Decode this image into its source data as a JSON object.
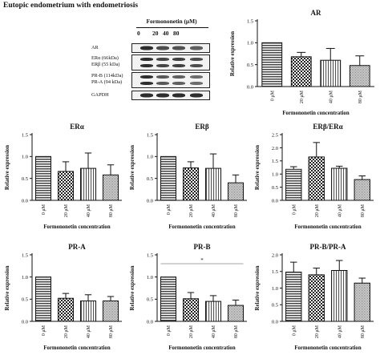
{
  "title": "Eutopic endometrium with endometriosis",
  "blot": {
    "header": "Formononetin (μM)",
    "doses": [
      "0",
      "20",
      "40",
      "80"
    ],
    "rows": [
      {
        "labels": [
          "AR"
        ],
        "intensity": [
          1.0,
          0.75,
          0.7,
          0.6
        ]
      },
      {
        "labels": [
          "ERα (66kDa)",
          "ERβ (55 kDa)"
        ],
        "intensity": [
          1.0,
          0.8,
          0.85,
          0.75
        ]
      },
      {
        "labels": [
          "PR-B (114kDa)",
          "PR-A (94 kDa)"
        ],
        "intensity": [
          1.0,
          0.65,
          0.6,
          0.5
        ]
      },
      {
        "labels": [
          "GAPDH"
        ],
        "intensity": [
          1.0,
          1.0,
          1.0,
          1.0
        ]
      }
    ]
  },
  "chart_data": [
    {
      "type": "bar",
      "title": "AR",
      "categories": [
        "0 μM",
        "20 μM",
        "40 μM",
        "80 μM"
      ],
      "values": [
        1.0,
        0.68,
        0.6,
        0.48
      ],
      "errors": [
        0.0,
        0.1,
        0.27,
        0.22
      ],
      "xlabel": "Formononetin concentration",
      "ylabel": "Relative expression",
      "ylim": [
        0,
        1.5
      ],
      "yticks": [
        "0.0",
        "0.5",
        "1.0",
        "1.5"
      ],
      "patterns": [
        "hstripe",
        "check",
        "vstripe",
        "dense"
      ],
      "grid": false
    },
    {
      "type": "bar",
      "title": "ERα",
      "categories": [
        "0 μM",
        "20 μM",
        "40 μM",
        "80 μM"
      ],
      "values": [
        1.0,
        0.66,
        0.73,
        0.58
      ],
      "errors": [
        0.0,
        0.22,
        0.35,
        0.23
      ],
      "xlabel": "Formononetin concentration",
      "ylabel": "Relative expression",
      "ylim": [
        0,
        1.5
      ],
      "yticks": [
        "0.0",
        "0.5",
        "1.0",
        "1.5"
      ],
      "patterns": [
        "hstripe",
        "check",
        "vstripe",
        "dense"
      ],
      "grid": false
    },
    {
      "type": "bar",
      "title": "ERβ",
      "categories": [
        "0 μM",
        "20 μM",
        "40 μM",
        "80 μM"
      ],
      "values": [
        1.0,
        0.74,
        0.73,
        0.4
      ],
      "errors": [
        0.0,
        0.14,
        0.33,
        0.18
      ],
      "xlabel": "Formononetin concentration",
      "ylabel": "Relative expression",
      "ylim": [
        0,
        1.5
      ],
      "yticks": [
        "0.0",
        "0.5",
        "1.0",
        "1.5"
      ],
      "patterns": [
        "hstripe",
        "check",
        "vstripe",
        "dense"
      ],
      "grid": false
    },
    {
      "type": "bar",
      "title": "ERβ/ERα",
      "categories": [
        "0 μM",
        "20 μM",
        "40 μM",
        "80 μM"
      ],
      "values": [
        1.18,
        1.65,
        1.22,
        0.79
      ],
      "errors": [
        0.1,
        0.55,
        0.08,
        0.14
      ],
      "xlabel": "Formononetin concentration",
      "ylabel": "Relative expression",
      "ylim": [
        0,
        2.5
      ],
      "yticks": [
        "0.0",
        "0.5",
        "1.0",
        "1.5",
        "2.0",
        "2.5"
      ],
      "patterns": [
        "hstripe",
        "check",
        "vstripe",
        "dense"
      ],
      "grid": false
    },
    {
      "type": "bar",
      "title": "PR-A",
      "categories": [
        "0 μM",
        "20 μM",
        "40 μM",
        "80 μM"
      ],
      "values": [
        1.0,
        0.52,
        0.46,
        0.46
      ],
      "errors": [
        0.0,
        0.11,
        0.14,
        0.1
      ],
      "xlabel": "Formononetin concentration",
      "ylabel": "Relative expression",
      "ylim": [
        0,
        1.5
      ],
      "yticks": [
        "0.0",
        "0.5",
        "1.0",
        "1.5"
      ],
      "patterns": [
        "hstripe",
        "check",
        "vstripe",
        "dense"
      ],
      "grid": false
    },
    {
      "type": "bar",
      "title": "PR-B",
      "categories": [
        "0 μM",
        "20 μM",
        "40 μM",
        "80 μM"
      ],
      "values": [
        1.0,
        0.51,
        0.45,
        0.36
      ],
      "errors": [
        0.0,
        0.14,
        0.13,
        0.12
      ],
      "xlabel": "Formononetin concentration",
      "ylabel": "Relative expression",
      "ylim": [
        0,
        1.5
      ],
      "yticks": [
        "0.0",
        "0.5",
        "1.0",
        "1.5"
      ],
      "patterns": [
        "hstripe",
        "check",
        "vstripe",
        "dense"
      ],
      "grid": false,
      "annotation": {
        "text": "*",
        "from": 0,
        "to": 3,
        "y": 1.3
      }
    },
    {
      "type": "bar",
      "title": "PR-B/PR-A",
      "categories": [
        "0 μM",
        "20 μM",
        "40 μM",
        "80 μM"
      ],
      "values": [
        1.48,
        1.4,
        1.53,
        1.15
      ],
      "errors": [
        0.3,
        0.2,
        0.3,
        0.15
      ],
      "xlabel": "Formononetin concentration",
      "ylabel": "Relative expression",
      "ylim": [
        0,
        2.0
      ],
      "yticks": [
        "0.0",
        "0.5",
        "1.0",
        "1.5",
        "2.0"
      ],
      "patterns": [
        "hstripe",
        "check",
        "vstripe",
        "dense"
      ],
      "grid": false
    }
  ]
}
